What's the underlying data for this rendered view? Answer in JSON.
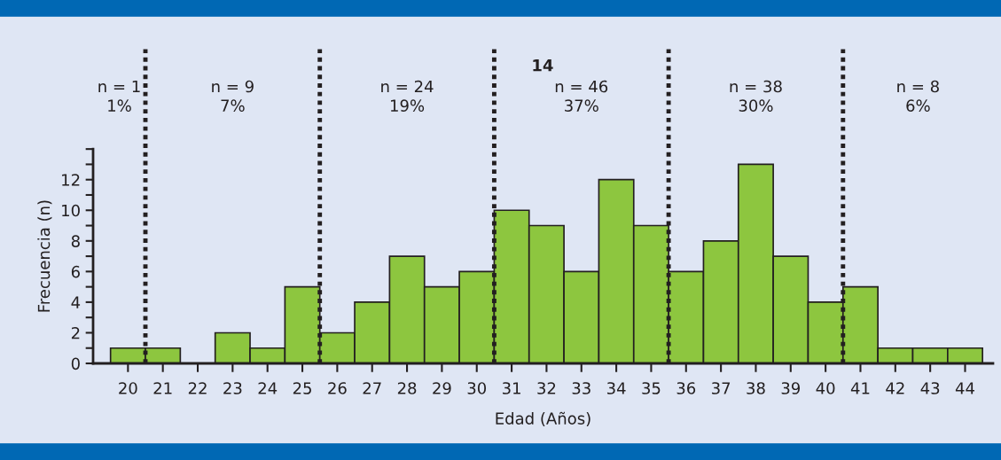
{
  "chart_data": {
    "type": "histogram",
    "title": "14",
    "xlabel": "Edad (Años)",
    "ylabel": "Frecuencia (n)",
    "bins": [
      19.5,
      20.5,
      21.5,
      22.5,
      23.5,
      24.5,
      25.5,
      26.5,
      27.5,
      28.5,
      29.5,
      30.5,
      31.5,
      32.5,
      33.5,
      34.5,
      35.5,
      36.5,
      37.5,
      38.5,
      39.5,
      40.5,
      41.5,
      42.5,
      43.5,
      44.5
    ],
    "values": [
      1,
      1,
      0,
      2,
      1,
      5,
      2,
      4,
      7,
      5,
      6,
      10,
      9,
      6,
      12,
      9,
      6,
      8,
      13,
      7,
      4,
      5,
      1,
      1,
      1
    ],
    "color": "#8dc63f",
    "xlim": [
      19,
      44.8
    ],
    "xticks": [
      20,
      21,
      22,
      23,
      24,
      25,
      26,
      27,
      28,
      29,
      30,
      31,
      32,
      33,
      34,
      35,
      36,
      37,
      38,
      39,
      40,
      41,
      42,
      43,
      44
    ],
    "ylim": [
      0,
      14
    ],
    "yticks": [
      0,
      2,
      4,
      6,
      8,
      10,
      12,
      {
        "value": 1,
        "label": null
      },
      {
        "value": 3,
        "label": null
      },
      {
        "value": 5,
        "label": null
      },
      {
        "value": 7,
        "label": null
      },
      {
        "value": 9,
        "label": null
      },
      {
        "value": 11,
        "label": null
      },
      {
        "value": 13,
        "label": null
      },
      {
        "value": 14,
        "label": null
      }
    ],
    "ref_lines": [
      {
        "axis": "x",
        "value": 20.5,
        "line_style": "dotted",
        "color": "#231f20"
      },
      {
        "axis": "x",
        "value": 25.5,
        "line_style": "dotted",
        "color": "#231f20"
      },
      {
        "axis": "x",
        "value": 30.5,
        "line_style": "dotted",
        "color": "#231f20"
      },
      {
        "axis": "x",
        "value": 35.5,
        "line_style": "dotted",
        "color": "#231f20"
      },
      {
        "axis": "x",
        "value": 40.5,
        "line_style": "dotted",
        "color": "#231f20"
      }
    ],
    "annotations": [
      "n = 1\n1%",
      "n = 9\n7%",
      "n = 24\n19%",
      "n = 46\n37%",
      "n = 38\n30%",
      "n = 8\n6%"
    ],
    "grid": false,
    "legend": false
  }
}
